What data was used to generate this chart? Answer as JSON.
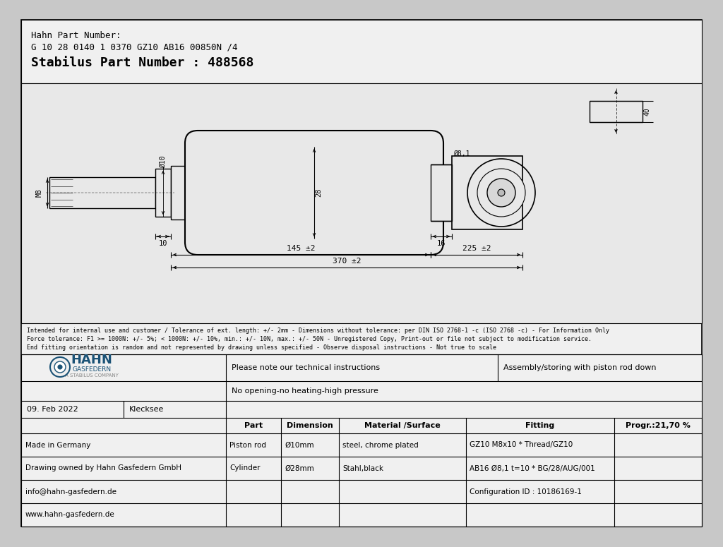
{
  "page_bg": "#c8c8c8",
  "main_bg": "#f0f0f0",
  "draw_bg": "#e8e8e8",
  "hahn_part_number_label": "Hahn Part Number:",
  "hahn_part_number": "G 10 28 0140 1 0370 GZ10 AB16 00850N /4",
  "stabilus_part_number": "Stabilus Part Number : 488568",
  "disclaimer_line1": "Intended for internal use and customer / Tolerance of ext. length: +/- 2mm - Dimensions without tolerance: per DIN ISO 2768-1 -c (ISO 2768 -c) - For Information Only",
  "disclaimer_line2": "Force tolerance: F1 >= 1000N: +/- 5%; < 1000N: +/- 10%, min.: +/- 10N, max.: +/- 50N - Unregistered Copy, Print-out or file not subject to modification service.",
  "disclaimer_line3": "End fitting orientation is random and not represented by drawing unless specified - Observe disposal instructions - Not true to scale",
  "note1": "Please note our technical instructions",
  "note2": "No opening-no heating-high pressure",
  "note3": "Assembly/storing with piston rod down",
  "date": "09. Feb 2022",
  "location": "Klecksee",
  "col_headers": [
    "",
    "Part",
    "Dimension",
    "Material /Surface",
    "Fitting",
    "Progr.:21,70 %"
  ],
  "rows": [
    [
      "Made in Germany",
      "Piston rod",
      "Ø10mm",
      "steel, chrome plated",
      "GZ10 M8x10 * Thread/GZ10",
      ""
    ],
    [
      "Drawing owned by Hahn Gasfedern GmbH",
      "Cylinder",
      "Ø28mm",
      "Stahl,black",
      "AB16 Ø8,1 t=10 * BG/28/AUG/001",
      ""
    ],
    [
      "info@hahn-gasfedern.de",
      "",
      "",
      "",
      "Configuration ID : 10186169-1",
      ""
    ],
    [
      "www.hahn-gasfedern.de",
      "",
      "",
      "",
      "",
      ""
    ]
  ],
  "left_col_labels": [
    "Made in Germany",
    "Drawing owned by Hahn Gasfedern GmbH",
    "info@hahn-gasfedern.de",
    "www.hahn-gasfedern.de"
  ]
}
